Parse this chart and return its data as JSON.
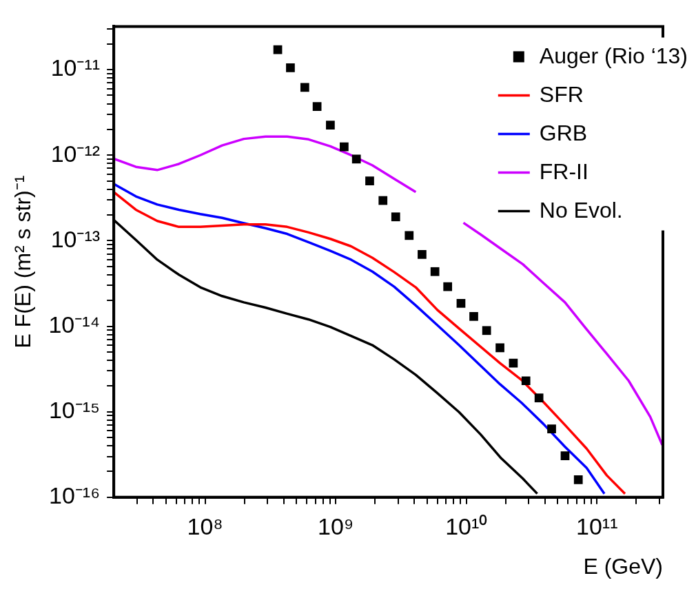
{
  "chart_data": {
    "type": "line",
    "xlabel": "E (GeV)",
    "ylabel": "E F(E) (m² s str)⁻¹",
    "log": "xy",
    "grid": false,
    "legend": "top right",
    "xlim": [
      20000000.0,
      320000000000.0
    ],
    "ylim": [
      1e-16,
      3.2e-11
    ],
    "xticks": [
      {
        "value": 30000000.0,
        "label": null
      },
      {
        "value": 40000000.0,
        "label": null
      },
      {
        "value": 50000000.0,
        "label": null
      },
      {
        "value": 60000000.0,
        "label": null
      },
      {
        "value": 70000000.0,
        "label": null
      },
      {
        "value": 80000000.0,
        "label": null
      },
      {
        "value": 90000000.0,
        "label": null
      },
      {
        "value": 100000000.0,
        "label": "10⁸"
      },
      {
        "value": 200000000.0,
        "label": null
      },
      {
        "value": 300000000.0,
        "label": null
      },
      {
        "value": 400000000.0,
        "label": null
      },
      {
        "value": 500000000.0,
        "label": null
      },
      {
        "value": 600000000.0,
        "label": null
      },
      {
        "value": 700000000.0,
        "label": null
      },
      {
        "value": 800000000.0,
        "label": null
      },
      {
        "value": 900000000.0,
        "label": null
      },
      {
        "value": 1000000000.0,
        "label": "10⁹"
      },
      {
        "value": 2000000000.0,
        "label": null
      },
      {
        "value": 3000000000.0,
        "label": null
      },
      {
        "value": 4000000000.0,
        "label": null
      },
      {
        "value": 5000000000.0,
        "label": null
      },
      {
        "value": 6000000000.0,
        "label": null
      },
      {
        "value": 7000000000.0,
        "label": null
      },
      {
        "value": 8000000000.0,
        "label": null
      },
      {
        "value": 9000000000.0,
        "label": null
      },
      {
        "value": 10000000000.0,
        "label": "10¹⁰"
      },
      {
        "value": 20000000000.0,
        "label": null
      },
      {
        "value": 30000000000.0,
        "label": null
      },
      {
        "value": 40000000000.0,
        "label": null
      },
      {
        "value": 50000000000.0,
        "label": null
      },
      {
        "value": 60000000000.0,
        "label": null
      },
      {
        "value": 70000000000.0,
        "label": null
      },
      {
        "value": 80000000000.0,
        "label": null
      },
      {
        "value": 90000000000.0,
        "label": null
      },
      {
        "value": 100000000000.0,
        "label": "10¹¹"
      },
      {
        "value": 200000000000.0,
        "label": null
      },
      {
        "value": 300000000000.0,
        "label": null
      }
    ],
    "yticks": [
      {
        "value": 1e-16,
        "label": "10⁻¹⁶"
      },
      {
        "value": 2e-16,
        "label": null
      },
      {
        "value": 3e-16,
        "label": null
      },
      {
        "value": 4e-16,
        "label": null
      },
      {
        "value": 5e-16,
        "label": null
      },
      {
        "value": 6e-16,
        "label": null
      },
      {
        "value": 7e-16,
        "label": null
      },
      {
        "value": 8e-16,
        "label": null
      },
      {
        "value": 9e-16,
        "label": null
      },
      {
        "value": 1e-15,
        "label": "10⁻¹⁵"
      },
      {
        "value": 2e-15,
        "label": null
      },
      {
        "value": 3e-15,
        "label": null
      },
      {
        "value": 4e-15,
        "label": null
      },
      {
        "value": 5e-15,
        "label": null
      },
      {
        "value": 6e-15,
        "label": null
      },
      {
        "value": 7e-15,
        "label": null
      },
      {
        "value": 8e-15,
        "label": null
      },
      {
        "value": 9e-15,
        "label": null
      },
      {
        "value": 1e-14,
        "label": "10⁻¹⁴"
      },
      {
        "value": 2e-14,
        "label": null
      },
      {
        "value": 3e-14,
        "label": null
      },
      {
        "value": 4e-14,
        "label": null
      },
      {
        "value": 5e-14,
        "label": null
      },
      {
        "value": 6e-14,
        "label": null
      },
      {
        "value": 7e-14,
        "label": null
      },
      {
        "value": 8e-14,
        "label": null
      },
      {
        "value": 9e-14,
        "label": null
      },
      {
        "value": 1e-13,
        "label": "10⁻¹³"
      },
      {
        "value": 2e-13,
        "label": null
      },
      {
        "value": 3e-13,
        "label": null
      },
      {
        "value": 4e-13,
        "label": null
      },
      {
        "value": 5e-13,
        "label": null
      },
      {
        "value": 6e-13,
        "label": null
      },
      {
        "value": 7e-13,
        "label": null
      },
      {
        "value": 8e-13,
        "label": null
      },
      {
        "value": 9e-13,
        "label": null
      },
      {
        "value": 1e-12,
        "label": "10⁻¹²"
      },
      {
        "value": 2e-12,
        "label": null
      },
      {
        "value": 3e-12,
        "label": null
      },
      {
        "value": 4e-12,
        "label": null
      },
      {
        "value": 5e-12,
        "label": null
      },
      {
        "value": 6e-12,
        "label": null
      },
      {
        "value": 7e-12,
        "label": null
      },
      {
        "value": 8e-12,
        "label": null
      },
      {
        "value": 9e-12,
        "label": null
      },
      {
        "value": 1e-11,
        "label": "10⁻¹¹"
      },
      {
        "value": 2e-11,
        "label": null
      },
      {
        "value": 3e-11,
        "label": null
      }
    ],
    "series": [
      {
        "name": "Auger (Rio ‘13)",
        "type": "scatter",
        "marker": "square",
        "color": "#000000",
        "x": [
          360000000.0,
          450000000.0,
          580000000.0,
          720000000.0,
          910000000.0,
          1160000000.0,
          1440000000.0,
          1820000000.0,
          2300000000.0,
          2880000000.0,
          3650000000.0,
          4580000000.0,
          5750000000.0,
          7200000000.0,
          9100000000.0,
          11400000000.0,
          14300000000.0,
          18100000000.0,
          22900000000.0,
          28600000000.0,
          36000000000.0,
          45000000000.0,
          57000000000.0,
          72000000000.0
        ],
        "values": [
          1.71e-11,
          1.05e-11,
          6.2e-12,
          3.7e-12,
          2.25e-12,
          1.25e-12,
          9e-13,
          5e-13,
          2.95e-13,
          1.9e-13,
          1.15e-13,
          6.9e-14,
          4.35e-14,
          2.9e-14,
          1.85e-14,
          1.3e-14,
          8.9e-15,
          5.6e-15,
          3.7e-15,
          2.3e-15,
          1.45e-15,
          6.3e-16,
          3.05e-16,
          1.6e-16
        ]
      },
      {
        "name": "SFR",
        "type": "line",
        "color": "#ff0000",
        "x": [
          20000000.0,
          29500000.0,
          43000000.0,
          63000000.0,
          92000000.0,
          135000000.0,
          198000000.0,
          290000000.0,
          425000000.0,
          620000000.0,
          910000000.0,
          1310000000.0,
          1910000000.0,
          2800000000.0,
          4100000000.0,
          6000000000.0,
          8800000000.0,
          18100000000.0,
          26500000000.0,
          38900000000.0,
          56900000000.0,
          83400000000.0,
          119000000000.0,
          164000000000.0
        ],
        "values": [
          3.7e-13,
          2.3e-13,
          1.7e-13,
          1.45e-13,
          1.45e-13,
          1.5e-13,
          1.55e-13,
          1.55e-13,
          1.45e-13,
          1.25e-13,
          1.05e-13,
          8.6e-14,
          6.3e-14,
          4.3e-14,
          2.85e-14,
          1.55e-14,
          9.4e-15,
          3.7e-15,
          2.35e-15,
          1.3e-15,
          7e-16,
          3.7e-16,
          1.8e-16,
          1.1e-16
        ]
      },
      {
        "name": "GRB",
        "type": "line",
        "color": "#0000ff",
        "x": [
          20000000.0,
          29500000.0,
          43000000.0,
          63000000.0,
          92000000.0,
          135000000.0,
          198000000.0,
          290000000.0,
          425000000.0,
          620000000.0,
          910000000.0,
          1310000000.0,
          1910000000.0,
          2800000000.0,
          4100000000.0,
          6000000000.0,
          8800000000.0,
          18100000000.0,
          26500000000.0,
          38900000000.0,
          56900000000.0,
          83400000000.0,
          114000000000.0
        ],
        "values": [
          4.6e-13,
          3.3e-13,
          2.65e-13,
          2.3e-13,
          2.05e-13,
          1.85e-13,
          1.6e-13,
          1.4e-13,
          1.2e-13,
          9.6e-14,
          7.6e-14,
          6e-14,
          4.35e-14,
          2.9e-14,
          1.75e-14,
          1.03e-14,
          6e-15,
          2.1e-15,
          1.27e-15,
          7.2e-16,
          3.9e-16,
          2.2e-16,
          1.1e-16
        ]
      },
      {
        "name": "FR-II",
        "type": "line",
        "color": "#cc00ff",
        "x": [
          20000000.0,
          29500000.0,
          43000000.0,
          63000000.0,
          92000000.0,
          135000000.0,
          198000000.0,
          290000000.0,
          425000000.0,
          620000000.0,
          910000000.0,
          1310000000.0,
          1910000000.0,
          2800000000.0,
          4100000000.0,
          6600000000.0,
          9500000000.0,
          12900000000.0,
          18900000000.0,
          27100000000.0,
          38900000000.0,
          56900000000.0,
          81000000000.0,
          117000000000.0,
          175000000000.0,
          256000000000.0,
          316000000000.0
        ],
        "values": [
          9.1e-13,
          7.3e-13,
          6.7e-13,
          7.9e-13,
          1e-12,
          1.3e-12,
          1.55e-12,
          1.65e-12,
          1.65e-12,
          1.53e-12,
          1.27e-12,
          1e-12,
          7.6e-13,
          5.3e-13,
          3.7e-13,
          null,
          1.62e-13,
          1.18e-13,
          7.8e-14,
          5.3e-14,
          3.2e-14,
          1.9e-14,
          9.7e-15,
          4.9e-15,
          2.3e-15,
          8.7e-16,
          4.1e-16
        ]
      },
      {
        "name": "No Evol.",
        "type": "line",
        "color": "#000000",
        "x": [
          20000000.0,
          29500000.0,
          43000000.0,
          63000000.0,
          92000000.0,
          135000000.0,
          198000000.0,
          290000000.0,
          425000000.0,
          620000000.0,
          910000000.0,
          1310000000.0,
          1910000000.0,
          2800000000.0,
          4100000000.0,
          6000000000.0,
          8800000000.0,
          12900000000.0,
          18500000000.0,
          27100000000.0,
          34900000000.0
        ],
        "values": [
          1.75e-13,
          1.02e-13,
          6e-14,
          4e-14,
          2.85e-14,
          2.25e-14,
          1.9e-14,
          1.65e-14,
          1.4e-14,
          1.2e-14,
          9.8e-15,
          7.7e-15,
          6e-15,
          4.1e-15,
          2.7e-15,
          1.65e-15,
          9.9e-16,
          5.4e-16,
          2.85e-16,
          1.65e-16,
          1.1e-16
        ]
      }
    ]
  }
}
